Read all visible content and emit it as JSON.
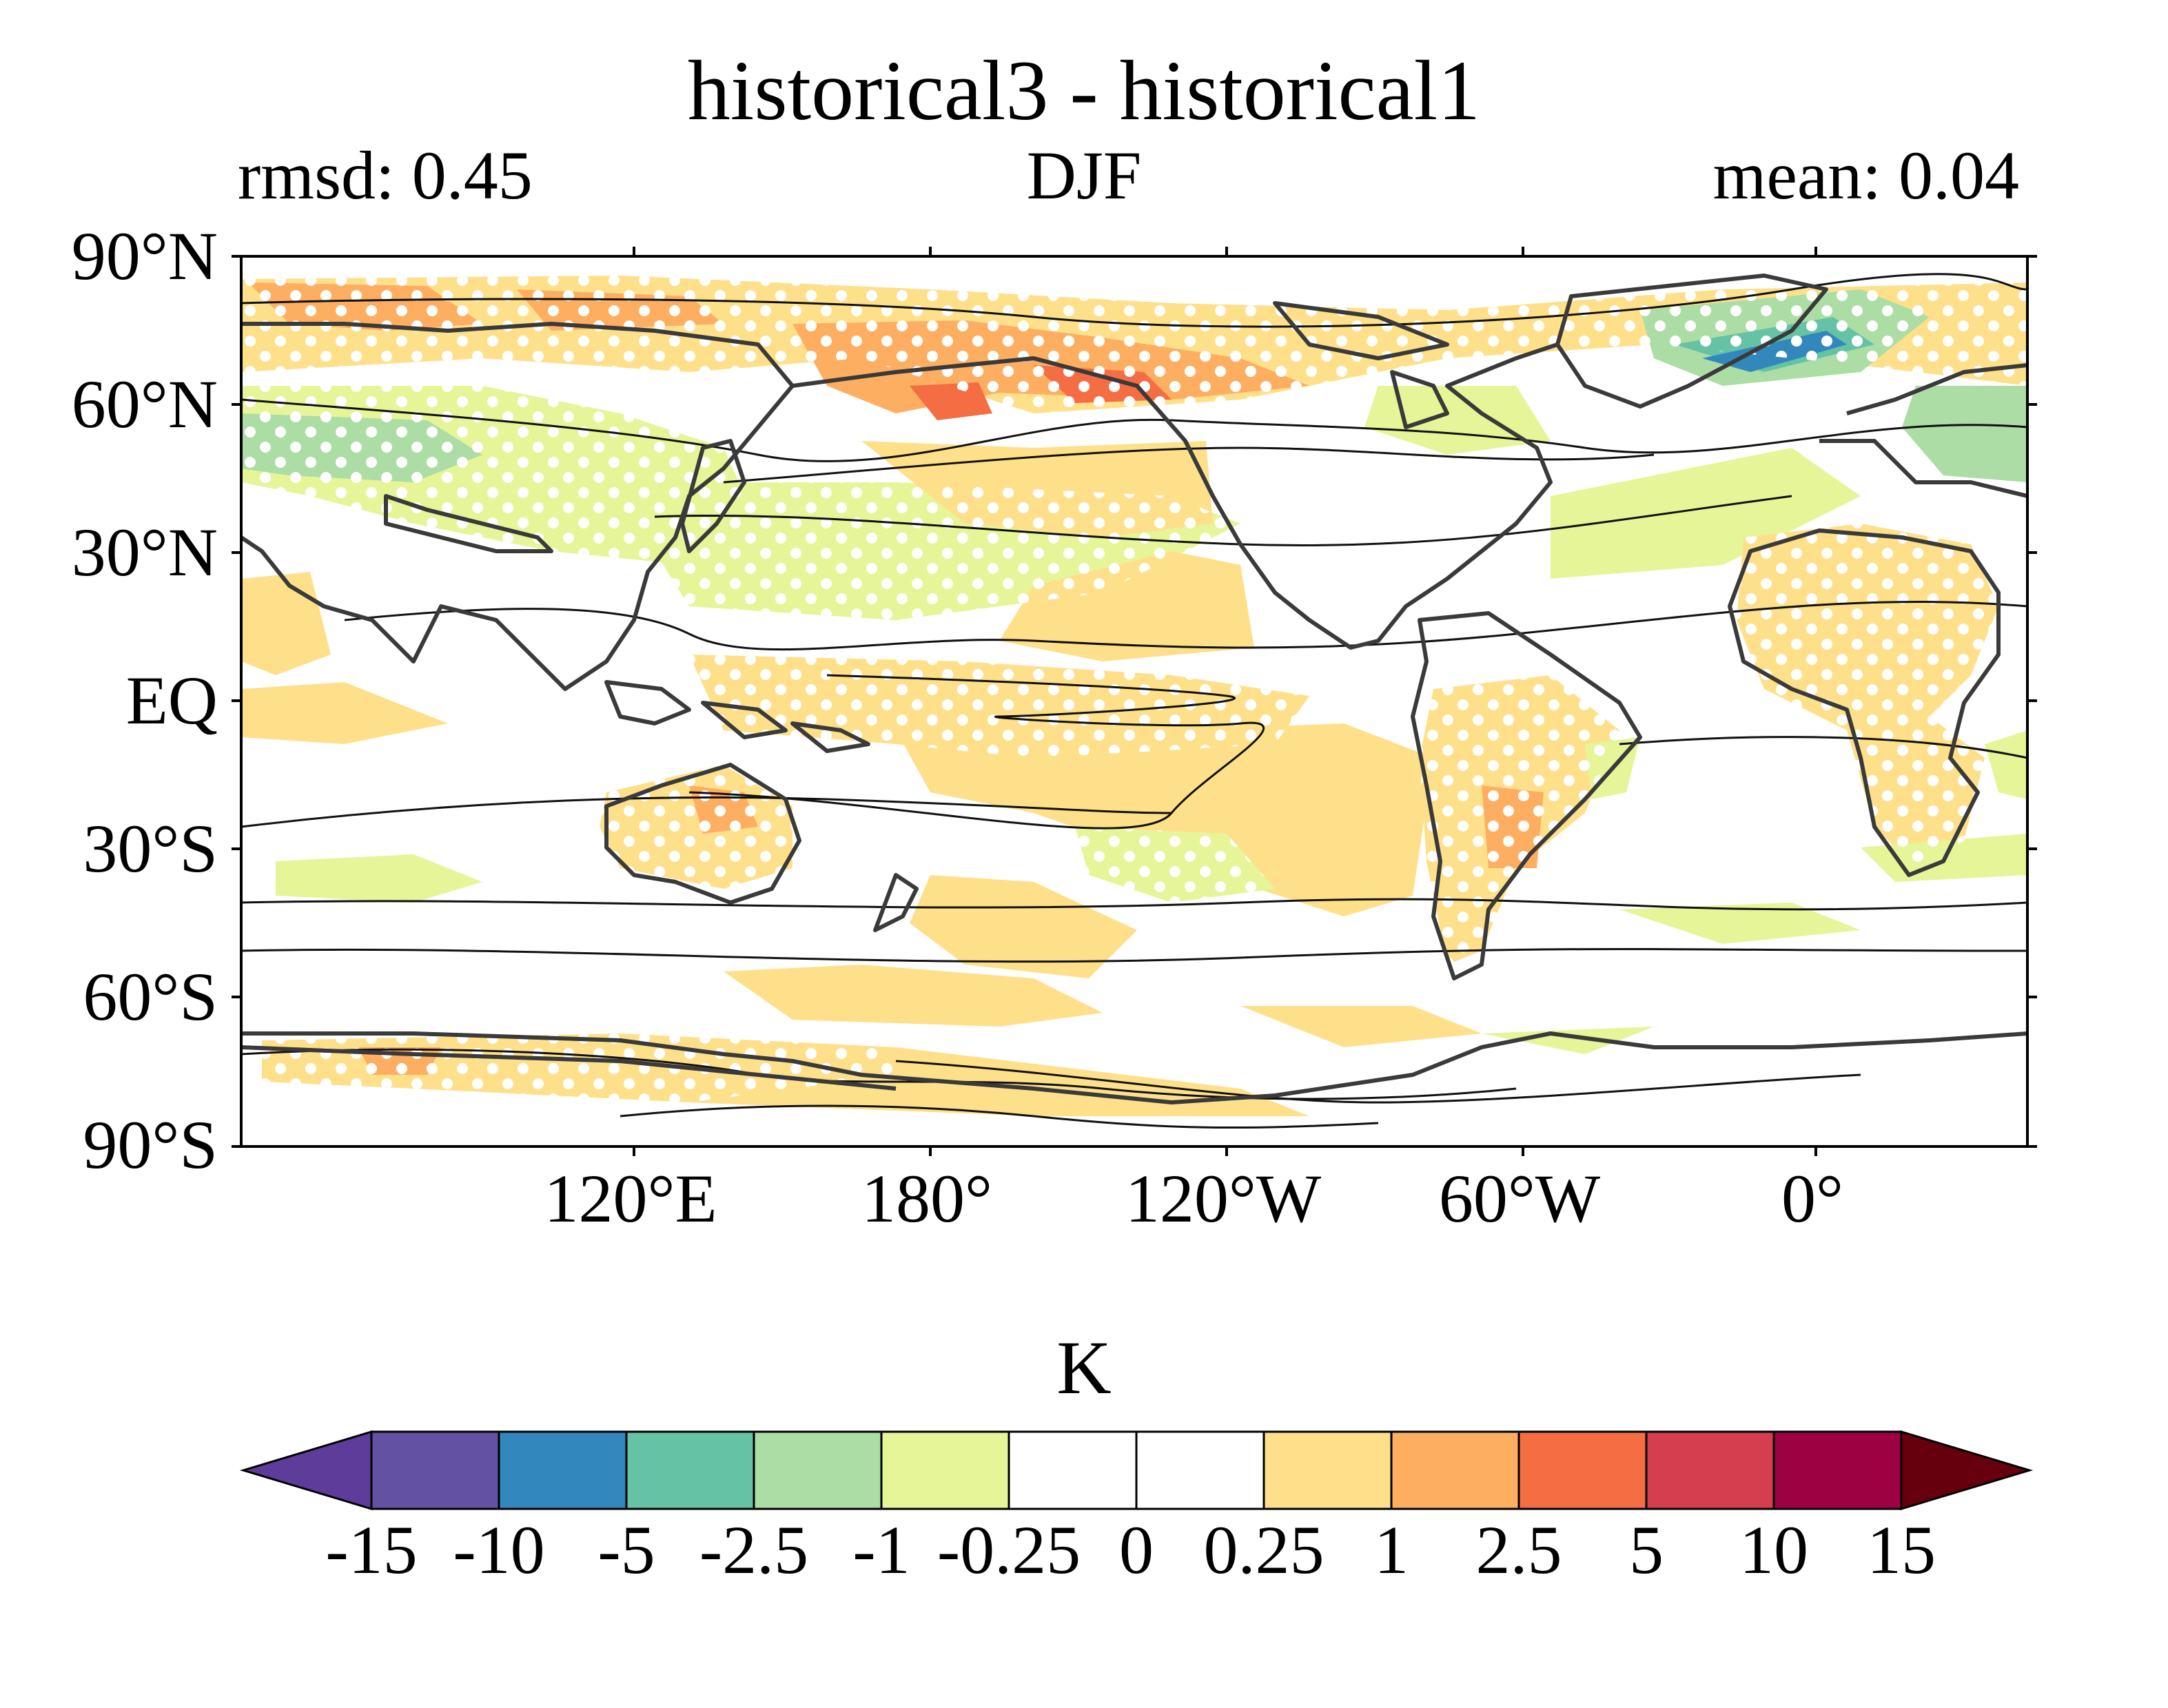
{
  "title": "historical3 - historical1",
  "subtitle": {
    "left": "rmsd: 0.45",
    "center": "DJF",
    "right": "mean: 0.04"
  },
  "lat_ticks": [
    "90°N",
    "60°N",
    "30°N",
    "EQ",
    "30°S",
    "60°S",
    "90°S"
  ],
  "lon_ticks": [
    "120°E",
    "180°",
    "120°W",
    "60°W",
    "0°"
  ],
  "colorbar": {
    "label": "K",
    "tick_labels": [
      "-15",
      "-10",
      "-5",
      "-2.5",
      "-1",
      "-0.25",
      "0",
      "0.25",
      "1",
      "2.5",
      "5",
      "10",
      "15"
    ],
    "colors": [
      "#5e3c99",
      "#6352a3",
      "#3288bd",
      "#66c2a5",
      "#abdda4",
      "#e6f598",
      "#ffffff",
      "#ffffff",
      "#fee08b",
      "#fdae61",
      "#f46d43",
      "#d53e4f",
      "#9e0142",
      "#67000d"
    ]
  }
}
